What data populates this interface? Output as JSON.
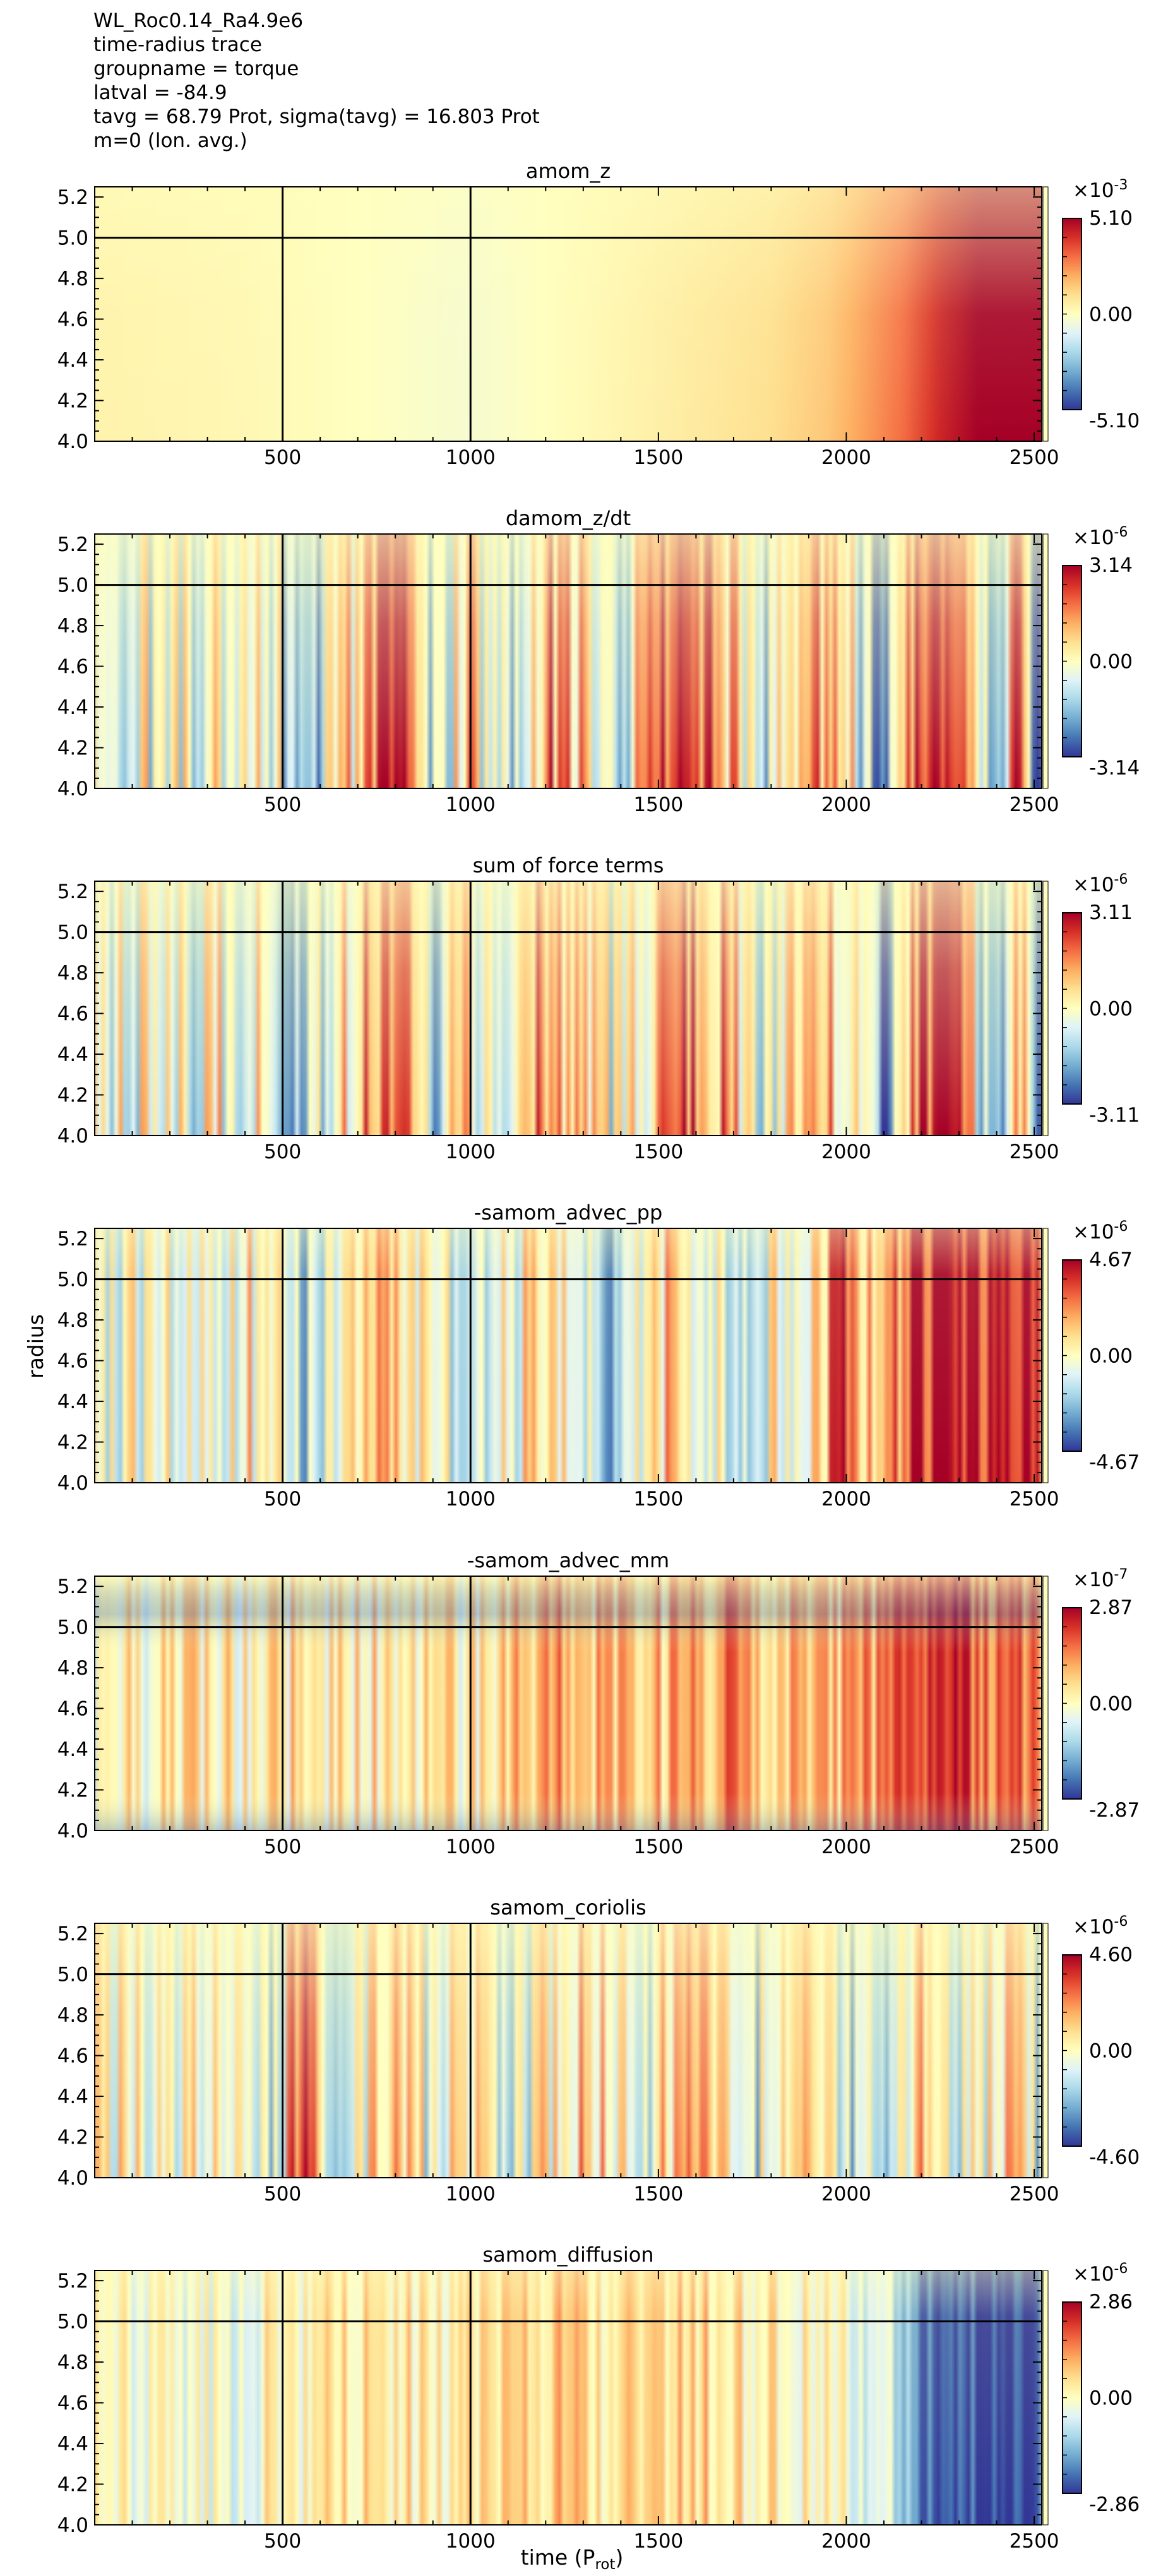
{
  "header": {
    "lines": [
      "WL_Roc0.14_Ra4.9e6",
      "time-radius trace",
      "groupname = torque",
      "latval = -84.9",
      "tavg = 68.79 Prot, sigma(tavg) = 16.803 Prot",
      "m=0 (lon. avg.)"
    ]
  },
  "colors": {
    "colormap": "RdYlBu_r",
    "stops": [
      "#313695",
      "#4575b4",
      "#74add1",
      "#abd9e9",
      "#e0f3f8",
      "#ffffbf",
      "#fee090",
      "#fdae61",
      "#f46d43",
      "#d73027",
      "#a50026"
    ],
    "marker_lines": "#000000"
  },
  "axis_labels": {
    "xlabel": "time (P",
    "xlabel_sub": "rot",
    "xlabel_close": ")",
    "ylabel": "radius"
  },
  "chart_data": [
    {
      "type": "heatmap",
      "title": "amom_z",
      "x_ticks": [
        "500",
        "1000",
        "1500",
        "2000",
        "2500"
      ],
      "y_ticks": [
        "4.0",
        "4.2",
        "4.4",
        "4.6",
        "4.8",
        "5.0",
        "5.2"
      ],
      "xlim": [
        0,
        2520
      ],
      "ylim": [
        4.0,
        5.25
      ],
      "vertical_lines_x": [
        500,
        1000
      ],
      "horizontal_line_y": 5.0,
      "colorbar": {
        "exponent_label": "×10",
        "exponent": "-3",
        "max": "5.10",
        "mid": "0.00",
        "min": "-5.10"
      },
      "profile": [
        [
          0,
          0.08
        ],
        [
          400,
          0.05
        ],
        [
          800,
          -0.02
        ],
        [
          1000,
          -0.06
        ],
        [
          1200,
          0.0
        ],
        [
          1500,
          0.1
        ],
        [
          1800,
          0.2
        ],
        [
          1950,
          0.3
        ],
        [
          2050,
          0.45
        ],
        [
          2150,
          0.6
        ],
        [
          2250,
          0.85
        ],
        [
          2350,
          1.0
        ],
        [
          2450,
          1.0
        ],
        [
          2520,
          1.0
        ]
      ],
      "radial_shape": "top_weak",
      "noise": 0.0
    },
    {
      "type": "heatmap",
      "title": "damom_z/dt",
      "x_ticks": [
        "500",
        "1000",
        "1500",
        "2000",
        "2500"
      ],
      "y_ticks": [
        "4.0",
        "4.2",
        "4.4",
        "4.6",
        "4.8",
        "5.0",
        "5.2"
      ],
      "xlim": [
        0,
        2520
      ],
      "ylim": [
        4.0,
        5.25
      ],
      "vertical_lines_x": [
        500,
        1000
      ],
      "horizontal_line_y": 5.0,
      "colorbar": {
        "exponent_label": "×10",
        "exponent": "-6",
        "max": "3.14",
        "mid": "0.00",
        "min": "-3.14"
      },
      "profile": [
        [
          0,
          0.0
        ],
        [
          200,
          -0.1
        ],
        [
          450,
          0.1
        ],
        [
          550,
          -0.6
        ],
        [
          700,
          0.3
        ],
        [
          820,
          0.8
        ],
        [
          900,
          -0.4
        ],
        [
          1000,
          0.2
        ],
        [
          1100,
          -0.3
        ],
        [
          1200,
          0.6
        ],
        [
          1300,
          0.3
        ],
        [
          1400,
          -0.2
        ],
        [
          1550,
          0.8
        ],
        [
          1650,
          0.5
        ],
        [
          1800,
          -0.3
        ],
        [
          1900,
          0.4
        ],
        [
          2000,
          0.2
        ],
        [
          2100,
          -0.9
        ],
        [
          2200,
          0.9
        ],
        [
          2300,
          0.8
        ],
        [
          2400,
          -0.8
        ],
        [
          2450,
          0.9
        ],
        [
          2520,
          -1.0
        ]
      ],
      "radial_shape": "bottom_strong",
      "noise": 0.55
    },
    {
      "type": "heatmap",
      "title": "sum of force terms",
      "x_ticks": [
        "500",
        "1000",
        "1500",
        "2000",
        "2500"
      ],
      "y_ticks": [
        "4.0",
        "4.2",
        "4.4",
        "4.6",
        "4.8",
        "5.0",
        "5.2"
      ],
      "xlim": [
        0,
        2520
      ],
      "ylim": [
        4.0,
        5.25
      ],
      "vertical_lines_x": [
        500,
        1000
      ],
      "horizontal_line_y": 5.0,
      "colorbar": {
        "exponent_label": "×10",
        "exponent": "-6",
        "max": "3.11",
        "mid": "0.00",
        "min": "-3.11"
      },
      "profile": [
        [
          0,
          0.0
        ],
        [
          200,
          -0.1
        ],
        [
          450,
          0.1
        ],
        [
          550,
          -0.6
        ],
        [
          700,
          0.3
        ],
        [
          820,
          0.8
        ],
        [
          900,
          -0.4
        ],
        [
          1000,
          0.2
        ],
        [
          1100,
          -0.3
        ],
        [
          1200,
          0.6
        ],
        [
          1300,
          0.3
        ],
        [
          1400,
          -0.2
        ],
        [
          1550,
          0.8
        ],
        [
          1650,
          0.5
        ],
        [
          1800,
          -0.3
        ],
        [
          1900,
          0.4
        ],
        [
          2000,
          0.2
        ],
        [
          2100,
          -0.9
        ],
        [
          2200,
          0.9
        ],
        [
          2300,
          0.8
        ],
        [
          2400,
          -0.8
        ],
        [
          2450,
          0.9
        ],
        [
          2520,
          -1.0
        ]
      ],
      "radial_shape": "bottom_strong",
      "noise": 0.55
    },
    {
      "type": "heatmap",
      "title": "-samom_advec_pp",
      "x_ticks": [
        "500",
        "1000",
        "1500",
        "2000",
        "2500"
      ],
      "y_ticks": [
        "4.0",
        "4.2",
        "4.4",
        "4.6",
        "4.8",
        "5.0",
        "5.2"
      ],
      "xlim": [
        0,
        2520
      ],
      "ylim": [
        4.0,
        5.25
      ],
      "vertical_lines_x": [
        500,
        1000
      ],
      "horizontal_line_y": 5.0,
      "colorbar": {
        "exponent_label": "×10",
        "exponent": "-6",
        "max": "4.67",
        "mid": "0.00",
        "min": "-4.67"
      },
      "profile": [
        [
          0,
          0.0
        ],
        [
          300,
          -0.05
        ],
        [
          500,
          0.2
        ],
        [
          560,
          -0.5
        ],
        [
          700,
          0.3
        ],
        [
          850,
          0.2
        ],
        [
          1000,
          -0.3
        ],
        [
          1200,
          0.2
        ],
        [
          1350,
          -0.5
        ],
        [
          1500,
          0.3
        ],
        [
          1700,
          -0.3
        ],
        [
          1900,
          0.2
        ],
        [
          2000,
          0.7
        ],
        [
          2100,
          0.2
        ],
        [
          2200,
          0.9
        ],
        [
          2300,
          1.0
        ],
        [
          2400,
          0.8
        ],
        [
          2450,
          1.0
        ],
        [
          2520,
          0.9
        ]
      ],
      "radial_shape": "uniform",
      "noise": 0.45
    },
    {
      "type": "heatmap",
      "title": "-samom_advec_mm",
      "x_ticks": [
        "500",
        "1000",
        "1500",
        "2000",
        "2500"
      ],
      "y_ticks": [
        "4.0",
        "4.2",
        "4.4",
        "4.6",
        "4.8",
        "5.0",
        "5.2"
      ],
      "xlim": [
        0,
        2520
      ],
      "ylim": [
        4.0,
        5.25
      ],
      "vertical_lines_x": [
        500,
        1000
      ],
      "horizontal_line_y": 5.0,
      "colorbar": {
        "exponent_label": "×10",
        "exponent": "-7",
        "max": "2.87",
        "mid": "0.00",
        "min": "-2.87"
      },
      "profile": [
        [
          0,
          0.05
        ],
        [
          400,
          0.1
        ],
        [
          800,
          0.15
        ],
        [
          1000,
          0.1
        ],
        [
          1200,
          0.35
        ],
        [
          1400,
          0.4
        ],
        [
          1550,
          0.3
        ],
        [
          1700,
          0.5
        ],
        [
          1800,
          0.2
        ],
        [
          2000,
          0.3
        ],
        [
          2150,
          0.5
        ],
        [
          2250,
          0.8
        ],
        [
          2300,
          0.9
        ],
        [
          2380,
          0.5
        ],
        [
          2450,
          0.7
        ],
        [
          2520,
          0.4
        ]
      ],
      "radial_shape": "edges_negative",
      "noise": 0.35
    },
    {
      "type": "heatmap",
      "title": "samom_coriolis",
      "x_ticks": [
        "500",
        "1000",
        "1500",
        "2000",
        "2500"
      ],
      "y_ticks": [
        "4.0",
        "4.2",
        "4.4",
        "4.6",
        "4.8",
        "5.0",
        "5.2"
      ],
      "xlim": [
        0,
        2520
      ],
      "ylim": [
        4.0,
        5.25
      ],
      "vertical_lines_x": [
        500,
        1000
      ],
      "horizontal_line_y": 5.0,
      "colorbar": {
        "exponent_label": "×10",
        "exponent": "-6",
        "max": "4.60",
        "mid": "0.00",
        "min": "-4.60"
      },
      "profile": [
        [
          0,
          0.0
        ],
        [
          300,
          0.1
        ],
        [
          480,
          -0.3
        ],
        [
          550,
          0.8
        ],
        [
          650,
          -0.4
        ],
        [
          800,
          0.6
        ],
        [
          900,
          -0.3
        ],
        [
          1000,
          0.2
        ],
        [
          1100,
          -0.3
        ],
        [
          1300,
          0.4
        ],
        [
          1450,
          -0.2
        ],
        [
          1600,
          0.6
        ],
        [
          1750,
          -0.3
        ],
        [
          1900,
          0.2
        ],
        [
          2050,
          -0.4
        ],
        [
          2200,
          0.3
        ],
        [
          2300,
          -0.3
        ],
        [
          2450,
          0.2
        ],
        [
          2520,
          -0.4
        ]
      ],
      "radial_shape": "bottom_strong",
      "noise": 0.5
    },
    {
      "type": "heatmap",
      "title": "samom_diffusion",
      "x_ticks": [
        "500",
        "1000",
        "1500",
        "2000",
        "2500"
      ],
      "y_ticks": [
        "4.0",
        "4.2",
        "4.4",
        "4.6",
        "4.8",
        "5.0",
        "5.2"
      ],
      "xlim": [
        0,
        2520
      ],
      "ylim": [
        4.0,
        5.25
      ],
      "vertical_lines_x": [
        500,
        1000
      ],
      "horizontal_line_y": 5.0,
      "colorbar": {
        "exponent_label": "×10",
        "exponent": "-6",
        "max": "2.86",
        "mid": "0.00",
        "min": "-2.86"
      },
      "profile": [
        [
          0,
          0.0
        ],
        [
          300,
          -0.1
        ],
        [
          500,
          0.05
        ],
        [
          800,
          0.15
        ],
        [
          1000,
          0.1
        ],
        [
          1200,
          0.25
        ],
        [
          1400,
          0.15
        ],
        [
          1600,
          0.25
        ],
        [
          1800,
          0.1
        ],
        [
          2000,
          0.0
        ],
        [
          2150,
          -0.4
        ],
        [
          2250,
          -0.9
        ],
        [
          2350,
          -1.0
        ],
        [
          2450,
          -1.0
        ],
        [
          2520,
          -0.9
        ]
      ],
      "radial_shape": "uniform",
      "noise": 0.3
    }
  ]
}
